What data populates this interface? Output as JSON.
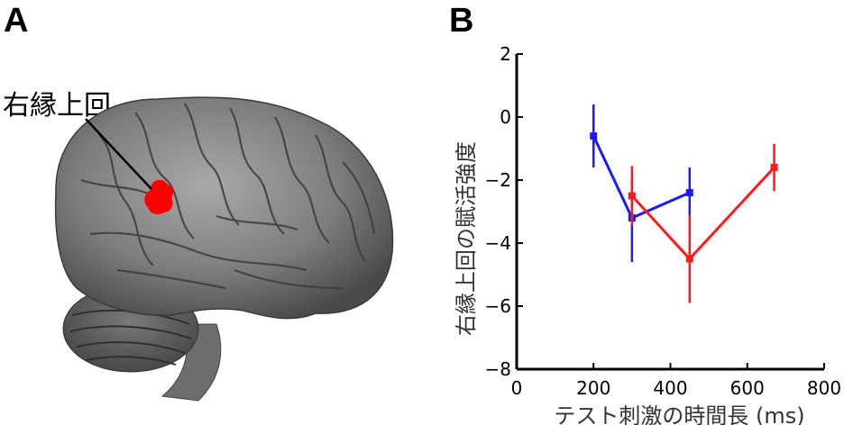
{
  "panel_a": {
    "letter": "A",
    "region_label": "右縁上回"
  },
  "panel_b": {
    "letter": "B"
  },
  "colors": {
    "blue": "#1a1aff",
    "red": "#ff1a1a",
    "activation": "#ff0000",
    "brain": "#7a7a7a"
  },
  "chart_data": {
    "type": "line",
    "xlabel": "テスト刺激の時間長 (ms)",
    "ylabel": "右縁上回の賦活強度",
    "xlim": [
      0,
      800
    ],
    "ylim": [
      -8,
      2
    ],
    "x_ticks": [
      "0",
      "200",
      "400",
      "600",
      "800"
    ],
    "y_ticks": [
      "2",
      "0",
      "−2",
      "−4",
      "−6",
      "−8"
    ],
    "y_tick_values": [
      2,
      0,
      -2,
      -4,
      -6,
      -8
    ],
    "x_tick_values": [
      0,
      200,
      400,
      600,
      800
    ],
    "grid": false,
    "series": [
      {
        "color": "blue",
        "x": [
          200,
          300,
          450
        ],
        "y": [
          -0.6,
          -3.2,
          -2.4
        ],
        "err": [
          1.0,
          1.4,
          0.8
        ]
      },
      {
        "color": "red",
        "x": [
          300,
          450,
          670
        ],
        "y": [
          -2.5,
          -4.5,
          -1.6
        ],
        "err": [
          0.95,
          1.4,
          0.75
        ]
      }
    ]
  }
}
